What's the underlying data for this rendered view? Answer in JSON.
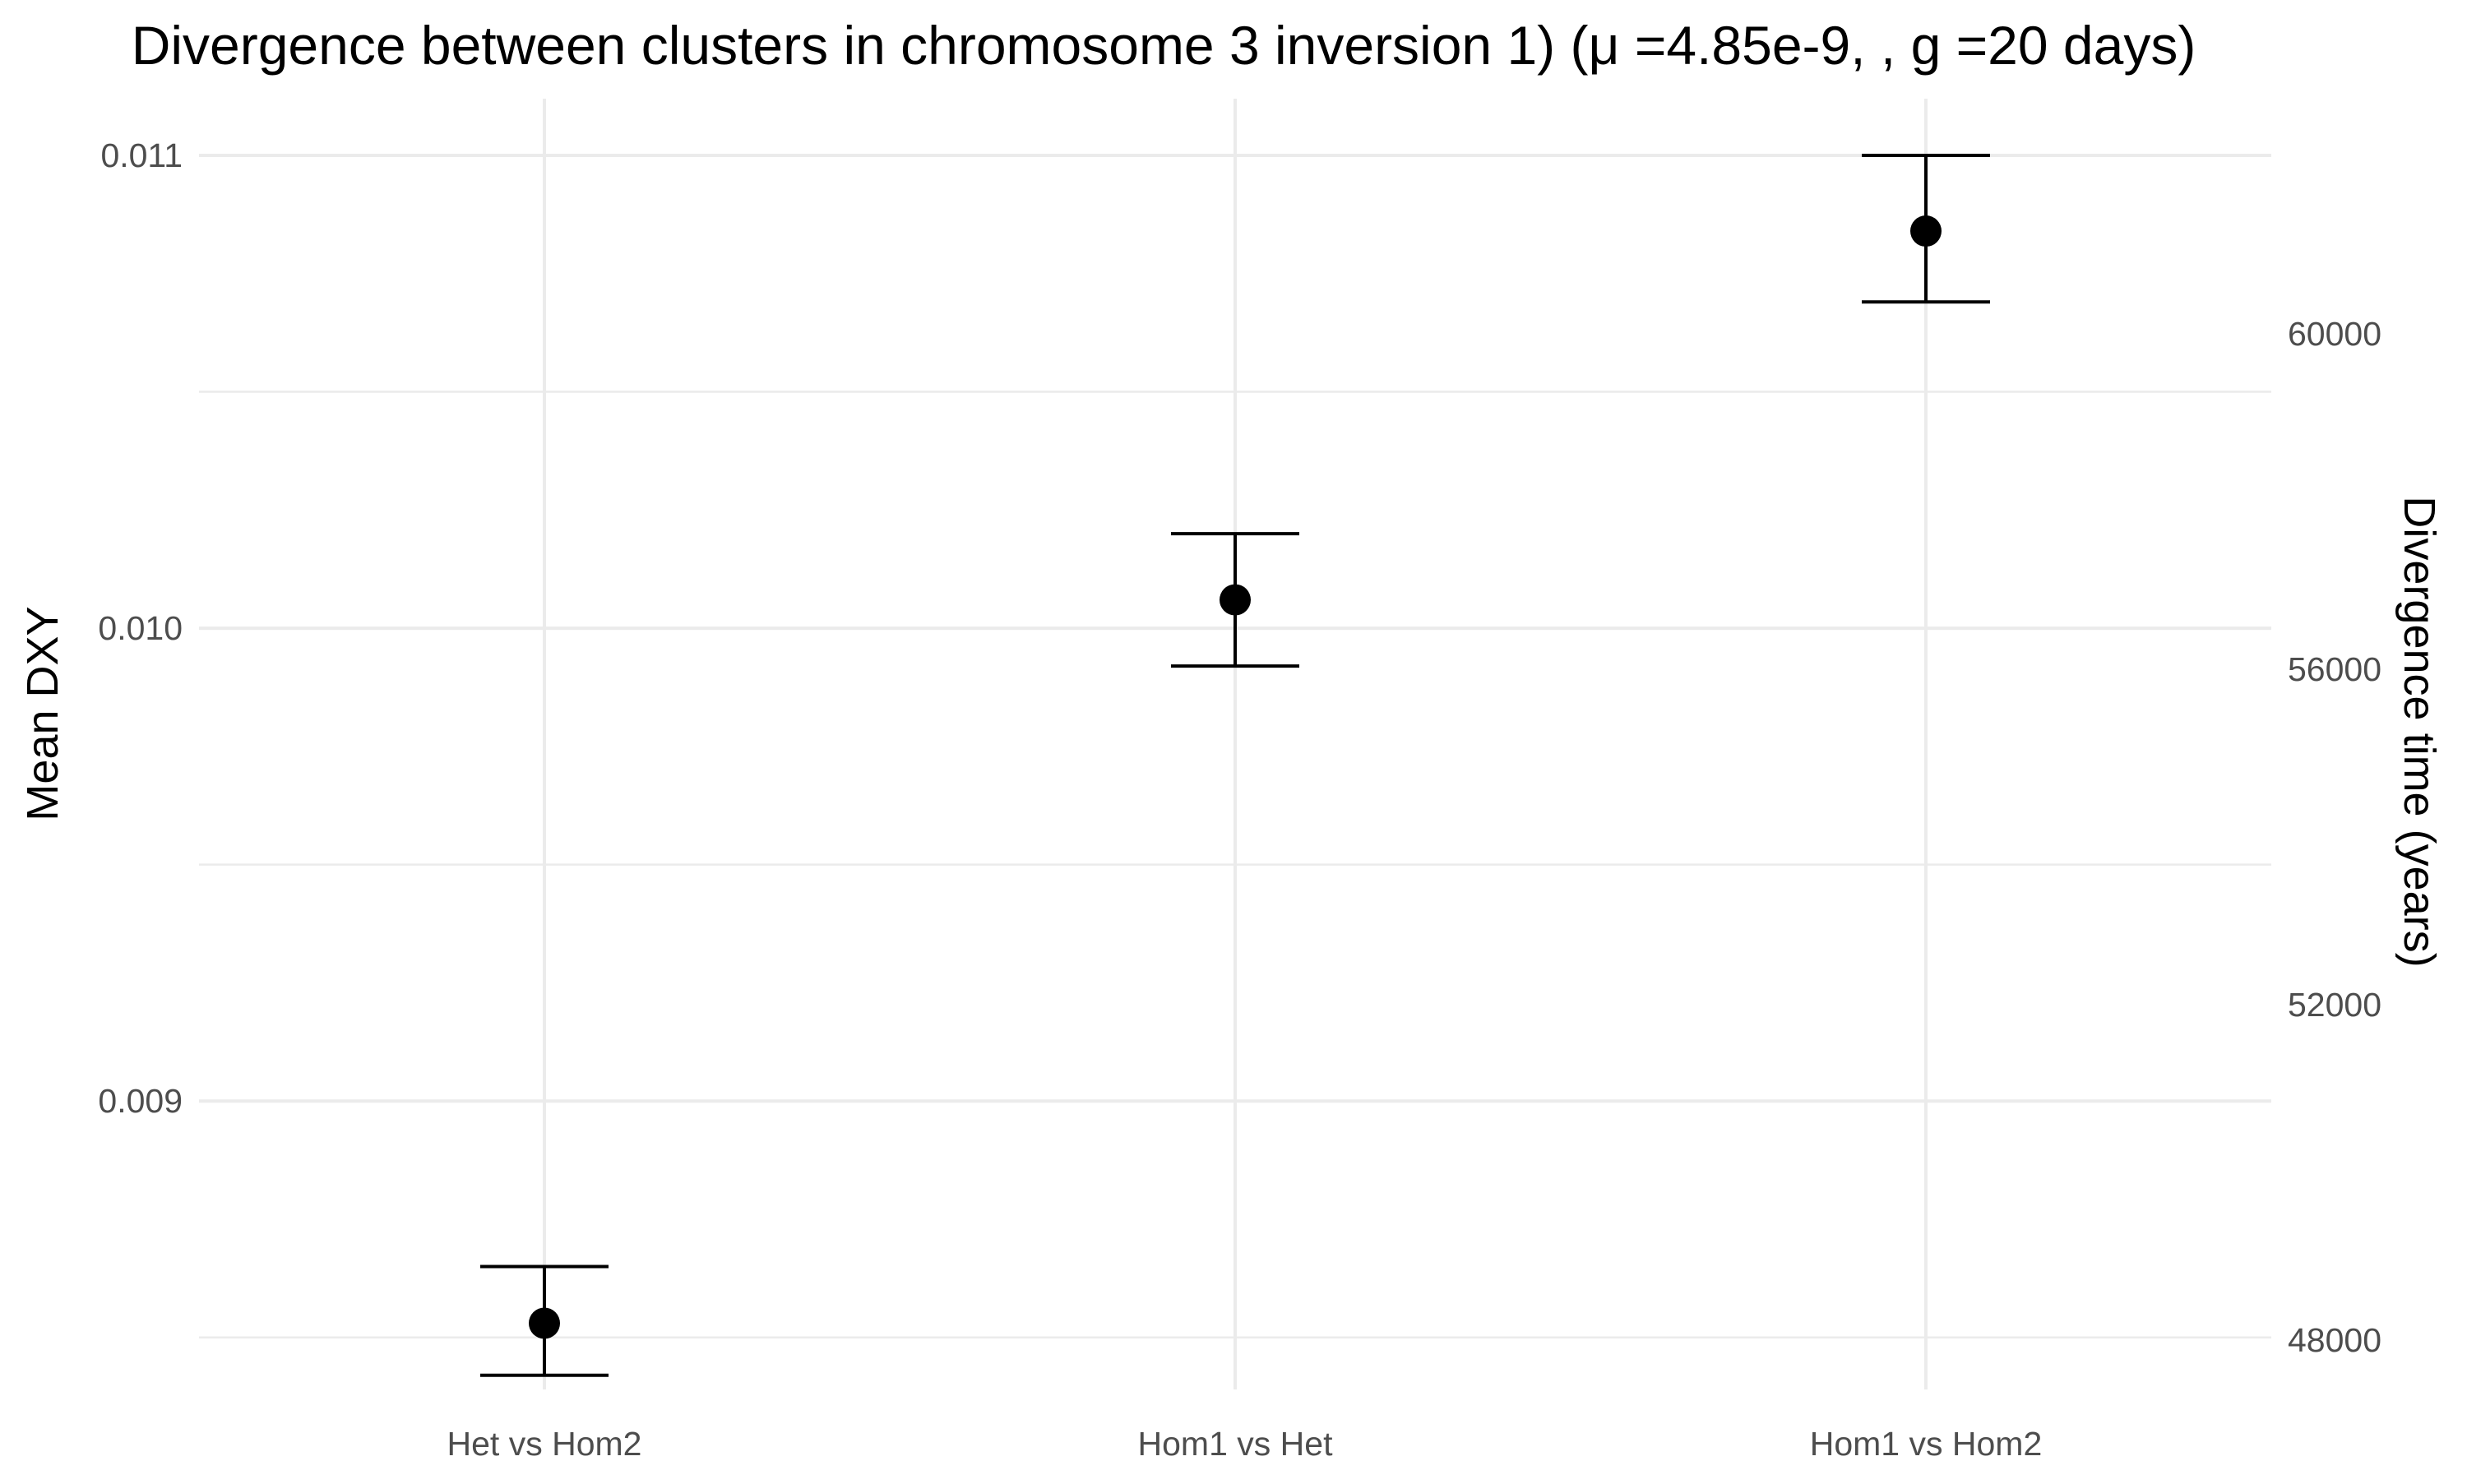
{
  "chart_data": {
    "type": "scatter",
    "title": "Divergence between clusters in chromosome 3 inversion 1) (μ =4.85e-9, ,  g =20 days)",
    "xlabel": "",
    "ylabel": "Mean DXY",
    "y2label": "Divergence time (years)",
    "categories": [
      "Het vs Hom2",
      "Hom1 vs Het",
      "Hom1 vs Hom2"
    ],
    "values": [
      0.00853,
      0.01006,
      0.01084
    ],
    "error_low": [
      0.00842,
      0.00992,
      0.01069
    ],
    "error_high": [
      0.00865,
      0.0102,
      0.011
    ],
    "ylim": [
      0.00839,
      0.01112
    ],
    "yticks": [
      0.009,
      0.01,
      0.011
    ],
    "ytick_labels": [
      "0.009",
      "0.010",
      "0.011"
    ],
    "y_minor_grid": [
      0.0085,
      0.0095,
      0.0105
    ],
    "y2ticks": [
      48000,
      52000,
      56000,
      60000
    ],
    "y2tick_labels": [
      "48000",
      "52000",
      "56000",
      "60000"
    ],
    "y2_conversion": {
      "y1": [
        0.0085,
        0.011
      ],
      "y2": [
        48030,
        62125
      ]
    },
    "grid": true,
    "legend": "none",
    "colors": {
      "points": "#000000",
      "grid": "#ebebeb",
      "tick_text": "#4d4d4d"
    }
  }
}
